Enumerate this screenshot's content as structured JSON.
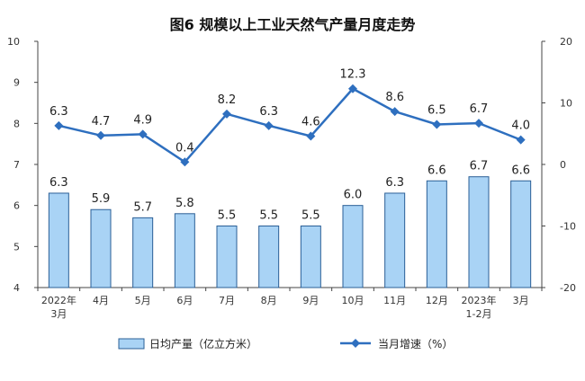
{
  "chart_data": {
    "type": "bar+line",
    "title": "图6  规模以上工业天然气产量月度走势",
    "categories": [
      [
        "2022年",
        "3月"
      ],
      [
        "4月"
      ],
      [
        "5月"
      ],
      [
        "6月"
      ],
      [
        "7月"
      ],
      [
        "8月"
      ],
      [
        "9月"
      ],
      [
        "10月"
      ],
      [
        "11月"
      ],
      [
        "12月"
      ],
      [
        "2023年",
        "1-2月"
      ],
      [
        "3月"
      ]
    ],
    "series": [
      {
        "name": "日均产量（亿立方米）",
        "type": "bar",
        "axis": "left",
        "color": "#a9d3f5",
        "values": [
          6.3,
          5.9,
          5.7,
          5.8,
          5.5,
          5.5,
          5.5,
          6.0,
          6.3,
          6.6,
          6.7,
          6.6
        ],
        "labels": [
          "6.3",
          "5.9",
          "5.7",
          "5.8",
          "5.5",
          "5.5",
          "5.5",
          "6.0",
          "6.3",
          "6.6",
          "6.7",
          "6.6"
        ]
      },
      {
        "name": "当月增速（%）",
        "type": "line",
        "axis": "right",
        "color": "#2e6fbf",
        "values": [
          6.3,
          4.7,
          4.9,
          0.4,
          8.2,
          6.3,
          4.6,
          12.3,
          8.6,
          6.5,
          6.7,
          4.0
        ],
        "labels": [
          "6.3",
          "4.7",
          "4.9",
          "0.4",
          "8.2",
          "6.3",
          "4.6",
          "12.3",
          "8.6",
          "6.5",
          "6.7",
          "4.0"
        ]
      }
    ],
    "y_left": {
      "min": 4,
      "max": 10,
      "ticks": [
        "4",
        "5",
        "6",
        "7",
        "8",
        "9",
        "10"
      ]
    },
    "y_right": {
      "min": -20,
      "max": 20,
      "ticks": [
        "-20",
        "-10",
        "0",
        "10",
        "20"
      ]
    },
    "grid": false,
    "legend_position": "bottom"
  }
}
